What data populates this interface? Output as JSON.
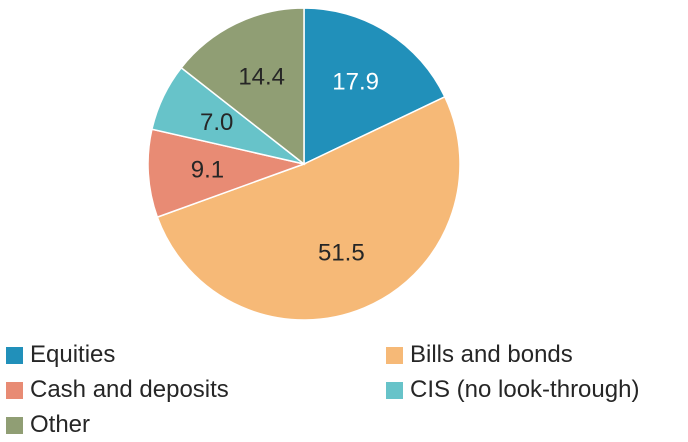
{
  "chart_data": {
    "type": "pie",
    "title": "",
    "start_angle_deg": 0,
    "direction": "clockwise",
    "slices": [
      {
        "name": "Equities",
        "value": 17.9,
        "label": "17.9",
        "color": "#2190ba",
        "label_color": "#ffffff"
      },
      {
        "name": "Bills and bonds",
        "value": 51.5,
        "label": "51.5",
        "color": "#f6b977",
        "label_color": "#262626"
      },
      {
        "name": "Cash and deposits",
        "value": 9.1,
        "label": "9.1",
        "color": "#e88b74",
        "label_color": "#262626"
      },
      {
        "name": "CIS (no look-through)",
        "value": 7.0,
        "label": "7.0",
        "color": "#67c3c9",
        "label_color": "#262626"
      },
      {
        "name": "Other",
        "value": 14.4,
        "label": "14.4",
        "color": "#909e74",
        "label_color": "#262626"
      }
    ],
    "legend": {
      "placement": "bottom",
      "columns": 2,
      "items": [
        {
          "label": "Equities",
          "color": "#2190ba"
        },
        {
          "label": "Bills and bonds",
          "color": "#f6b977"
        },
        {
          "label": "Cash and deposits",
          "color": "#e88b74"
        },
        {
          "label": "CIS (no look-through)",
          "color": "#67c3c9"
        },
        {
          "label": "Other",
          "color": "#909e74"
        }
      ]
    }
  }
}
